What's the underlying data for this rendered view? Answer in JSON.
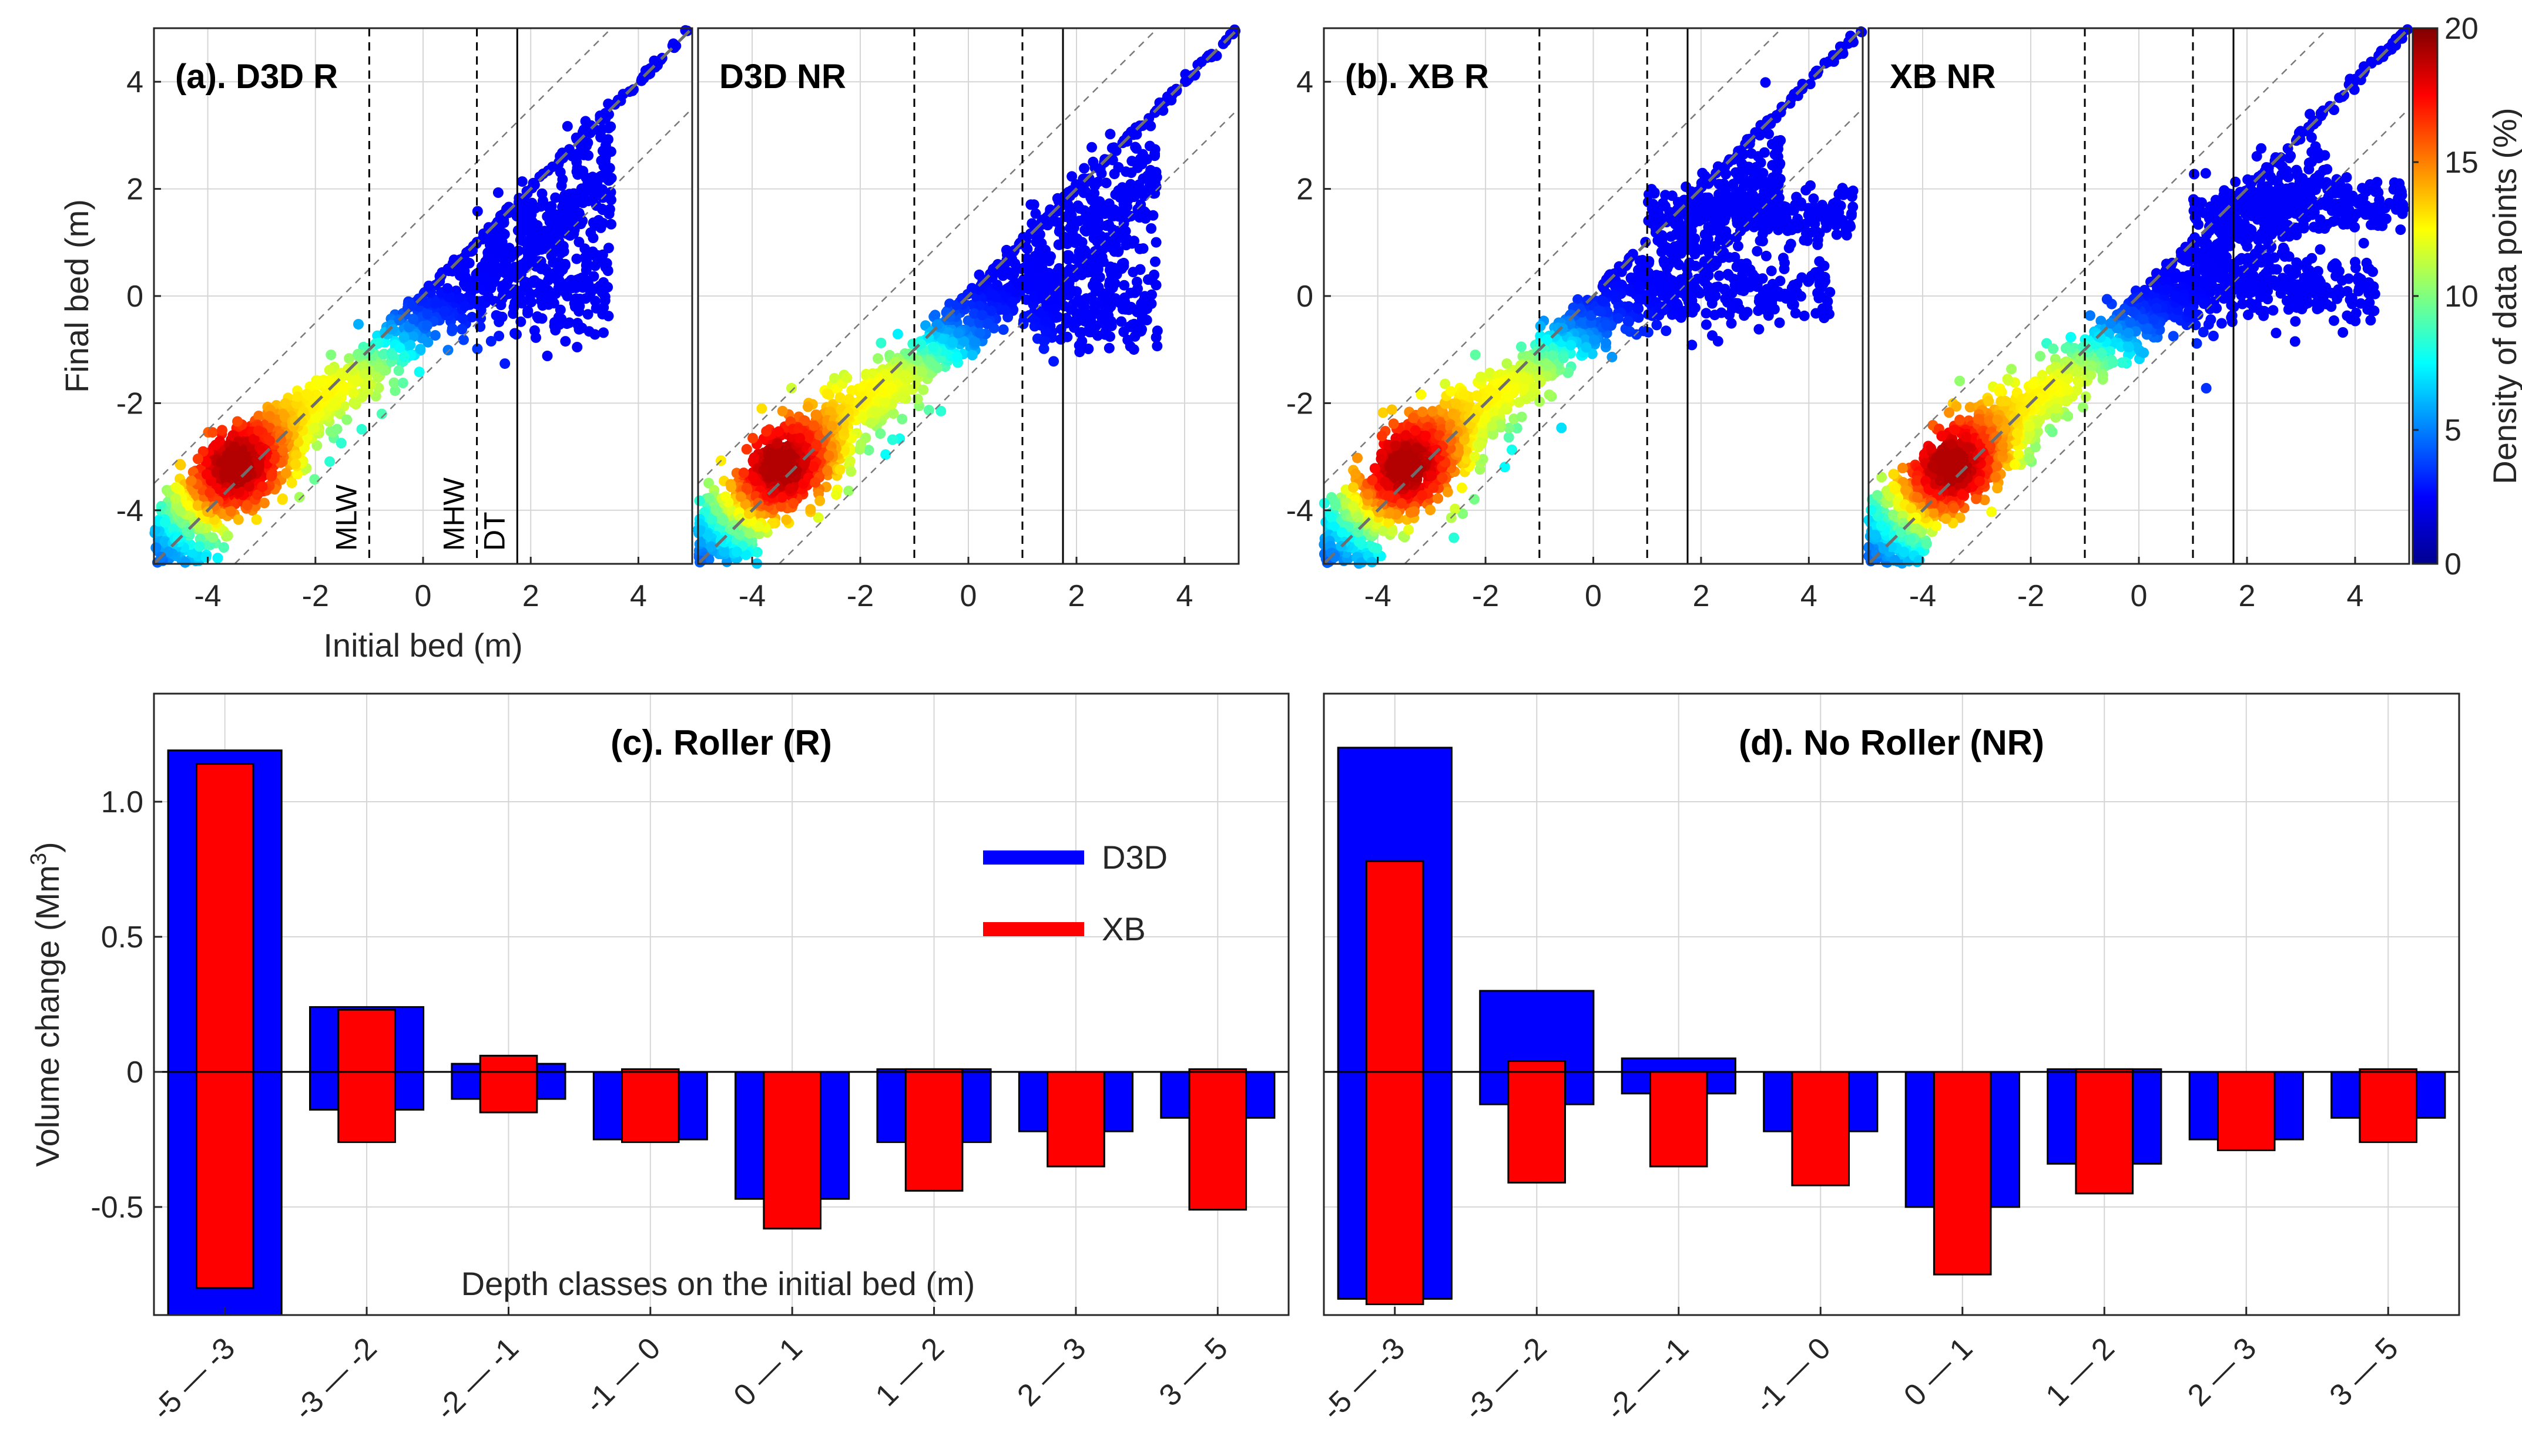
{
  "chart_data": [
    {
      "type": "scatter",
      "panel": "a-left",
      "title": "(a). D3D R",
      "xlabel": "Initial bed (m)",
      "ylabel": "Final bed (m)",
      "xlim": [
        -5,
        5
      ],
      "ylim": [
        -5,
        5
      ],
      "xticks": [
        "-4",
        "-2",
        "0",
        "2",
        "4"
      ],
      "yticks": [
        "-4",
        "-2",
        "0",
        "2",
        "4"
      ],
      "vlines": [
        {
          "x": -1,
          "style": "dashed",
          "label": "MLW"
        },
        {
          "x": 1,
          "style": "dashed",
          "label": "MHW"
        },
        {
          "x": 1.75,
          "style": "solid",
          "label": "DT"
        }
      ],
      "envelope_offset": 1.5
    },
    {
      "type": "scatter",
      "panel": "a-right",
      "title": "D3D NR",
      "xlim": [
        -5,
        5
      ],
      "ylim": [
        -5,
        5
      ],
      "xticks": [
        "-4",
        "-2",
        "0",
        "2",
        "4"
      ],
      "vlines": [
        {
          "x": -1,
          "style": "dashed"
        },
        {
          "x": 1,
          "style": "dashed"
        },
        {
          "x": 1.75,
          "style": "solid"
        }
      ],
      "envelope_offset": 1.5
    },
    {
      "type": "scatter",
      "panel": "b-left",
      "title": "(b). XB R",
      "xlim": [
        -5,
        5
      ],
      "ylim": [
        -5,
        5
      ],
      "xticks": [
        "-4",
        "-2",
        "0",
        "2",
        "4"
      ],
      "yticks": [
        "-4",
        "-2",
        "0",
        "2",
        "4"
      ],
      "vlines": [
        {
          "x": -1,
          "style": "dashed"
        },
        {
          "x": 1,
          "style": "dashed"
        },
        {
          "x": 1.75,
          "style": "solid"
        }
      ],
      "envelope_offset": 1.5
    },
    {
      "type": "scatter",
      "panel": "b-right",
      "title": "XB NR",
      "xlim": [
        -5,
        5
      ],
      "ylim": [
        -5,
        5
      ],
      "xticks": [
        "-4",
        "-2",
        "0",
        "2",
        "4"
      ],
      "vlines": [
        {
          "x": -1,
          "style": "dashed"
        },
        {
          "x": 1,
          "style": "dashed"
        },
        {
          "x": 1.75,
          "style": "solid"
        }
      ],
      "envelope_offset": 1.5,
      "colorbar": {
        "label": "Density of data points (%)",
        "min": 0,
        "max": 20,
        "ticks": [
          "0",
          "5",
          "10",
          "15",
          "20"
        ]
      }
    },
    {
      "type": "bar",
      "panel": "c",
      "title": "(c). Roller (R)",
      "ylabel": "Volume change (Mm³)",
      "ylabel_text": "Volume change (Mm",
      "ylabel_sup": "3",
      "ylabel_end": ")",
      "annotation": "Depth classes on the initial bed (m)",
      "ylim": [
        -0.9,
        1.4
      ],
      "yticks": [
        "-0.5",
        "0",
        "0.5",
        "1.0"
      ],
      "categories": [
        "-5 — -3",
        "-3 — -2",
        "-2 — -1",
        "-1 — 0",
        "0 — 1",
        "1 — 2",
        "2 — 3",
        "3 — 5"
      ],
      "series": [
        {
          "name": "D3D",
          "color": "#0000ff",
          "accretion": [
            1.19,
            0.24,
            0.03,
            0.0,
            0.0,
            0.01,
            0.0,
            0.0
          ],
          "erosion": [
            -0.9,
            -0.14,
            -0.1,
            -0.25,
            -0.47,
            -0.26,
            -0.22,
            -0.17
          ]
        },
        {
          "name": "XB",
          "color": "#ff0000",
          "accretion": [
            1.14,
            0.23,
            0.06,
            0.01,
            0.0,
            0.01,
            0.0,
            0.01
          ],
          "erosion": [
            -0.8,
            -0.26,
            -0.15,
            -0.26,
            -0.58,
            -0.44,
            -0.35,
            -0.51
          ]
        }
      ]
    },
    {
      "type": "bar",
      "panel": "d",
      "title": "(d). No Roller (NR)",
      "ylim": [
        -0.9,
        1.4
      ],
      "categories": [
        "-5 — -3",
        "-3 — -2",
        "-2 — -1",
        "-1 — 0",
        "0 — 1",
        "1 — 2",
        "2 — 3",
        "3 — 5"
      ],
      "series": [
        {
          "name": "D3D",
          "color": "#0000ff",
          "accretion": [
            1.2,
            0.3,
            0.05,
            0.0,
            0.0,
            0.01,
            0.0,
            0.0
          ],
          "erosion": [
            -0.84,
            -0.12,
            -0.08,
            -0.22,
            -0.5,
            -0.34,
            -0.25,
            -0.17
          ]
        },
        {
          "name": "XB",
          "color": "#ff0000",
          "accretion": [
            0.78,
            0.04,
            0.0,
            0.0,
            0.0,
            0.01,
            0.0,
            0.01
          ],
          "erosion": [
            -0.86,
            -0.41,
            -0.35,
            -0.42,
            -0.75,
            -0.45,
            -0.29,
            -0.26
          ]
        }
      ]
    }
  ]
}
